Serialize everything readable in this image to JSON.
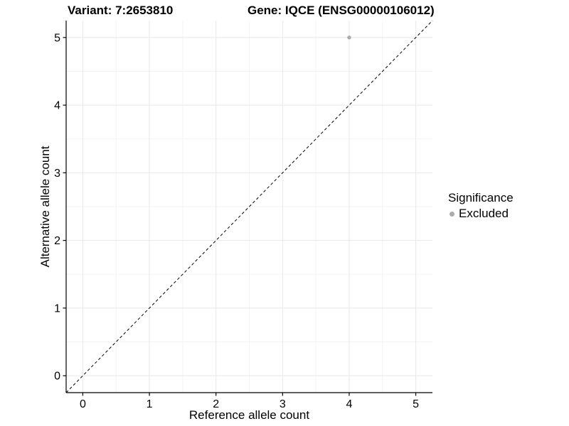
{
  "chart_data": {
    "type": "scatter",
    "title_left": "Variant: 7:2653810",
    "title_right": "Gene: IQCE (ENSG00000106012)",
    "xlabel": "Reference allele count",
    "ylabel": "Alternative allele count",
    "xlim": [
      -0.25,
      5.25
    ],
    "ylim": [
      -0.25,
      5.25
    ],
    "xticks": [
      0,
      1,
      2,
      3,
      4,
      5
    ],
    "yticks": [
      0,
      1,
      2,
      3,
      4,
      5
    ],
    "minor_step": 0.5,
    "grid": true,
    "background": "#ffffff",
    "major_grid_color": "#e8e8e8",
    "minor_grid_color": "#f3f3f3",
    "axis_color": "#000000",
    "identity_line": {
      "style": "dashed",
      "from": [
        -0.25,
        -0.25
      ],
      "to": [
        5.25,
        5.25
      ],
      "color": "#000000"
    },
    "series": [
      {
        "name": "Excluded",
        "color": "#ababab",
        "points": [
          {
            "x": 4,
            "y": 5
          }
        ]
      }
    ],
    "legend": {
      "title": "Significance",
      "position": "right",
      "items": [
        {
          "label": "Excluded",
          "color": "#ababab"
        }
      ]
    }
  }
}
